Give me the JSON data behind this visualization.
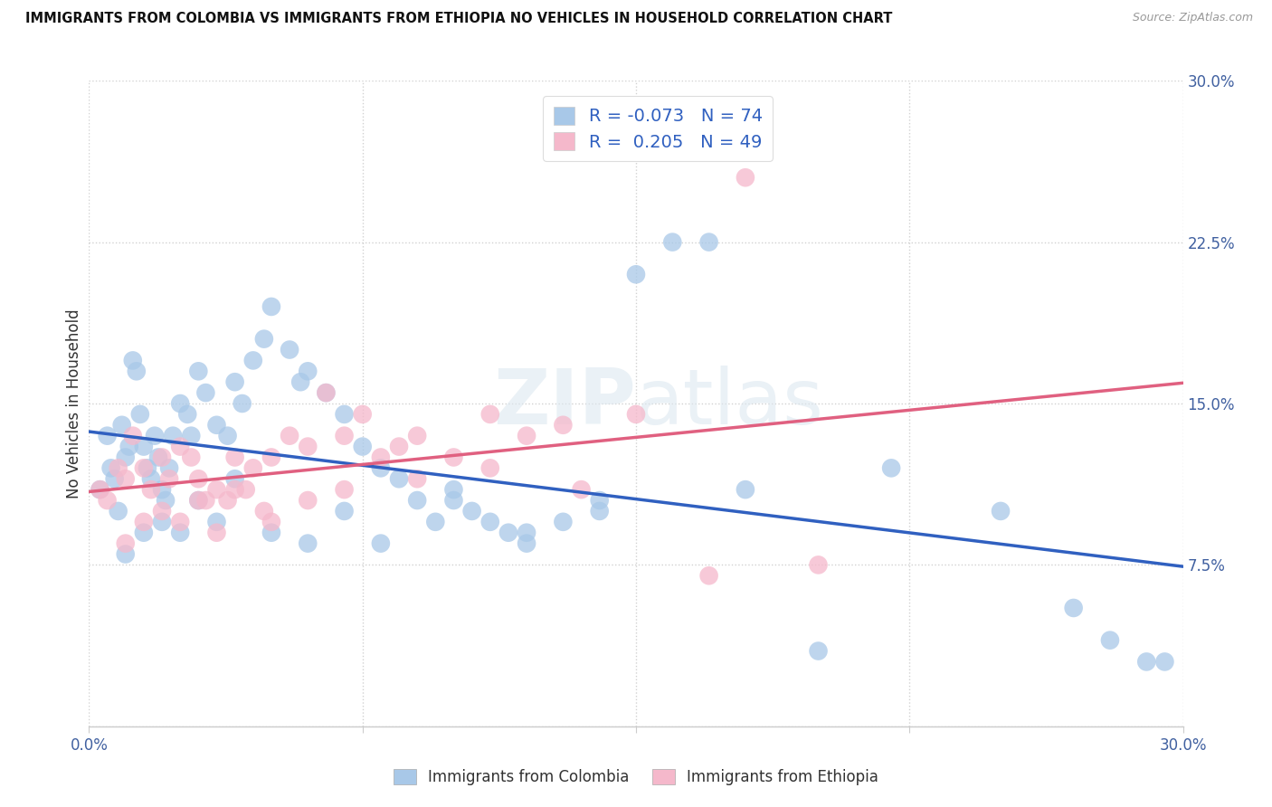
{
  "title": "IMMIGRANTS FROM COLOMBIA VS IMMIGRANTS FROM ETHIOPIA NO VEHICLES IN HOUSEHOLD CORRELATION CHART",
  "source": "Source: ZipAtlas.com",
  "ylabel": "No Vehicles in Household",
  "xlim": [
    0.0,
    30.0
  ],
  "ylim": [
    0.0,
    30.0
  ],
  "colombia_color": "#a8c8e8",
  "ethiopia_color": "#f5b8cb",
  "colombia_R": -0.073,
  "colombia_N": 74,
  "ethiopia_R": 0.205,
  "ethiopia_N": 49,
  "colombia_line_color": "#3060c0",
  "ethiopia_line_color": "#e06080",
  "watermark_text": "ZIPatlas",
  "legend_r_color": "#3060c0",
  "colombia_x": [
    0.3,
    0.5,
    0.6,
    0.7,
    0.8,
    0.9,
    1.0,
    1.1,
    1.2,
    1.3,
    1.4,
    1.5,
    1.6,
    1.7,
    1.8,
    1.9,
    2.0,
    2.1,
    2.2,
    2.3,
    2.5,
    2.7,
    2.8,
    3.0,
    3.2,
    3.5,
    3.8,
    4.0,
    4.2,
    4.5,
    4.8,
    5.0,
    5.5,
    5.8,
    6.0,
    6.5,
    7.0,
    7.5,
    8.0,
    8.5,
    9.0,
    9.5,
    10.0,
    10.5,
    11.0,
    11.5,
    12.0,
    13.0,
    14.0,
    15.0,
    16.0,
    17.0,
    18.0,
    20.0,
    22.0,
    25.0,
    27.0,
    28.0,
    29.0,
    1.0,
    1.5,
    2.0,
    2.5,
    3.0,
    3.5,
    4.0,
    5.0,
    6.0,
    7.0,
    8.0,
    10.0,
    12.0,
    14.0,
    29.5
  ],
  "colombia_y": [
    11.0,
    13.5,
    12.0,
    11.5,
    10.0,
    14.0,
    12.5,
    13.0,
    17.0,
    16.5,
    14.5,
    13.0,
    12.0,
    11.5,
    13.5,
    12.5,
    11.0,
    10.5,
    12.0,
    13.5,
    15.0,
    14.5,
    13.5,
    16.5,
    15.5,
    14.0,
    13.5,
    16.0,
    15.0,
    17.0,
    18.0,
    19.5,
    17.5,
    16.0,
    16.5,
    15.5,
    14.5,
    13.0,
    12.0,
    11.5,
    10.5,
    9.5,
    11.0,
    10.0,
    9.5,
    9.0,
    8.5,
    9.5,
    10.5,
    21.0,
    22.5,
    22.5,
    11.0,
    3.5,
    12.0,
    10.0,
    5.5,
    4.0,
    3.0,
    8.0,
    9.0,
    9.5,
    9.0,
    10.5,
    9.5,
    11.5,
    9.0,
    8.5,
    10.0,
    8.5,
    10.5,
    9.0,
    10.0,
    3.0
  ],
  "ethiopia_x": [
    0.3,
    0.5,
    0.8,
    1.0,
    1.2,
    1.5,
    1.7,
    2.0,
    2.2,
    2.5,
    2.8,
    3.0,
    3.2,
    3.5,
    3.8,
    4.0,
    4.3,
    4.5,
    4.8,
    5.0,
    5.5,
    6.0,
    6.5,
    7.0,
    7.5,
    8.0,
    8.5,
    9.0,
    10.0,
    11.0,
    12.0,
    13.0,
    15.0,
    17.0,
    18.0,
    20.0,
    1.0,
    1.5,
    2.0,
    2.5,
    3.0,
    3.5,
    4.0,
    5.0,
    6.0,
    7.0,
    9.0,
    11.0,
    13.5
  ],
  "ethiopia_y": [
    11.0,
    10.5,
    12.0,
    11.5,
    13.5,
    12.0,
    11.0,
    12.5,
    11.5,
    13.0,
    12.5,
    11.5,
    10.5,
    11.0,
    10.5,
    12.5,
    11.0,
    12.0,
    10.0,
    12.5,
    13.5,
    13.0,
    15.5,
    13.5,
    14.5,
    12.5,
    13.0,
    13.5,
    12.5,
    14.5,
    13.5,
    14.0,
    14.5,
    7.0,
    25.5,
    7.5,
    8.5,
    9.5,
    10.0,
    9.5,
    10.5,
    9.0,
    11.0,
    9.5,
    10.5,
    11.0,
    11.5,
    12.0,
    11.0
  ]
}
